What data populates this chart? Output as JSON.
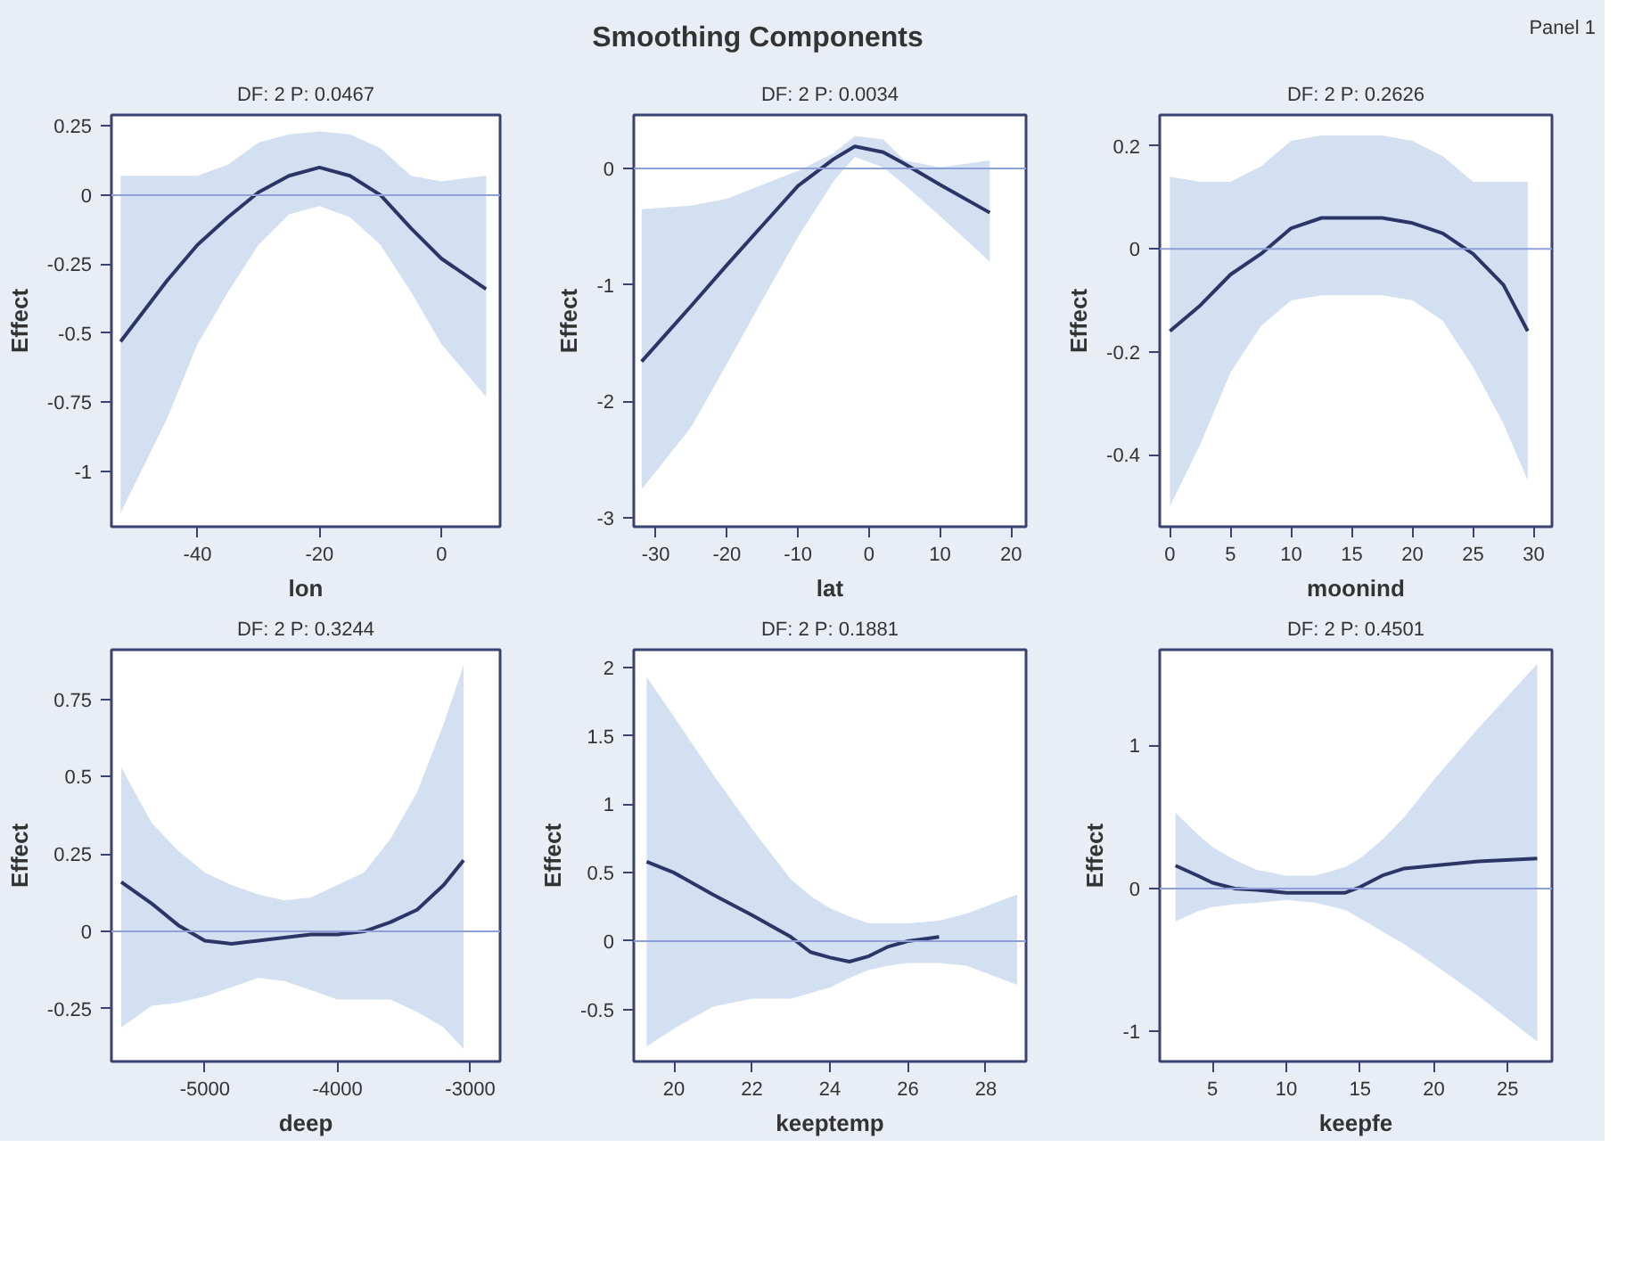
{
  "chart_data": [
    {
      "type": "line",
      "title": "DF: 2 P: 0.0467",
      "xlabel": "lon",
      "ylabel": "Effect",
      "annotations": [
        "Smoothing Components",
        "Panel 1"
      ],
      "xlim": [
        -54.1,
        9.6
      ],
      "ylim": [
        -1.2,
        0.29
      ],
      "xticks": [
        -40,
        -20,
        0
      ],
      "yticks": [
        0.25,
        0,
        -0.25,
        -0.5,
        -0.75,
        -1
      ],
      "grid": false,
      "ref_lines": [
        {
          "axis": "y",
          "value": 0,
          "color": "#8f9fd8"
        }
      ],
      "series": [
        {
          "color": "#2b3566",
          "x": [
            -52.6,
            -45,
            -40,
            -35,
            -30,
            -25,
            -20,
            -15,
            -10,
            -5,
            0,
            7.3
          ],
          "values": [
            -0.53,
            -0.31,
            -0.18,
            -0.08,
            0.01,
            0.07,
            0.1,
            0.07,
            0,
            -0.12,
            -0.23,
            -0.34
          ],
          "upper": [
            0.07,
            0.07,
            0.07,
            0.11,
            0.19,
            0.22,
            0.23,
            0.22,
            0.17,
            0.07,
            0.05,
            0.07
          ],
          "lower": [
            -1.15,
            -0.81,
            -0.54,
            -0.35,
            -0.18,
            -0.07,
            -0.04,
            -0.08,
            -0.18,
            -0.35,
            -0.54,
            -0.73
          ]
        }
      ]
    },
    {
      "type": "line",
      "title": "DF: 2 P: 0.0034",
      "xlabel": "lat",
      "ylabel": "Effect",
      "xlim": [
        -33.1,
        22.1
      ],
      "ylim": [
        -3.08,
        0.46
      ],
      "xticks": [
        -30,
        -20,
        -10,
        0,
        10,
        20
      ],
      "yticks": [
        0,
        -1,
        -2,
        -3
      ],
      "grid": false,
      "ref_lines": [
        {
          "axis": "y",
          "value": 0,
          "color": "#8f9fd8"
        }
      ],
      "series": [
        {
          "color": "#2b3566",
          "x": [
            -32,
            -25,
            -20,
            -15,
            -10,
            -5,
            -2,
            2,
            5,
            10,
            17
          ],
          "values": [
            -1.66,
            -1.18,
            -0.83,
            -0.49,
            -0.15,
            0.08,
            0.19,
            0.14,
            0.04,
            -0.14,
            -0.38
          ],
          "upper": [
            -0.35,
            -0.32,
            -0.26,
            -0.14,
            -0.02,
            0.13,
            0.28,
            0.25,
            0.07,
            0.01,
            0.07
          ],
          "lower": [
            -2.76,
            -2.22,
            -1.68,
            -1.13,
            -0.59,
            -0.11,
            0.1,
            0.01,
            -0.14,
            -0.41,
            -0.8
          ]
        }
      ]
    },
    {
      "type": "line",
      "title": "DF: 2 P: 0.2626",
      "xlabel": "moonind",
      "ylabel": "Effect",
      "xlim": [
        -0.84,
        31.5
      ],
      "ylim": [
        -0.54,
        0.26
      ],
      "xticks": [
        0,
        5,
        10,
        15,
        20,
        25,
        30
      ],
      "yticks": [
        0.2,
        0,
        -0.2,
        -0.4
      ],
      "grid": false,
      "ref_lines": [
        {
          "axis": "y",
          "value": 0,
          "color": "#8f9fd8"
        }
      ],
      "series": [
        {
          "color": "#2b3566",
          "x": [
            0,
            2.5,
            5,
            7.5,
            10,
            12.5,
            15,
            17.5,
            20,
            22.5,
            25,
            27.5,
            29.5
          ],
          "values": [
            -0.16,
            -0.11,
            -0.05,
            -0.01,
            0.04,
            0.06,
            0.06,
            0.06,
            0.05,
            0.03,
            -0.01,
            -0.07,
            -0.16
          ],
          "upper": [
            0.14,
            0.13,
            0.13,
            0.16,
            0.21,
            0.22,
            0.22,
            0.22,
            0.21,
            0.18,
            0.13,
            0.13,
            0.13
          ],
          "lower": [
            -0.5,
            -0.38,
            -0.24,
            -0.15,
            -0.1,
            -0.09,
            -0.09,
            -0.09,
            -0.1,
            -0.14,
            -0.23,
            -0.34,
            -0.45
          ]
        }
      ]
    },
    {
      "type": "line",
      "title": "DF: 2 P: 0.3244",
      "xlabel": "deep",
      "ylabel": "Effect",
      "xlim": [
        -5704,
        -2775
      ],
      "ylim": [
        -0.42,
        0.91
      ],
      "xticks": [
        -5000,
        -4000,
        -3000
      ],
      "yticks": [
        0.75,
        0.5,
        0.25,
        0,
        -0.25
      ],
      "grid": false,
      "ref_lines": [
        {
          "axis": "y",
          "value": 0,
          "color": "#8f9fd8"
        }
      ],
      "series": [
        {
          "color": "#2b3566",
          "x": [
            -5630,
            -5400,
            -5200,
            -5000,
            -4800,
            -4600,
            -4400,
            -4200,
            -4000,
            -3800,
            -3600,
            -3400,
            -3200,
            -3050
          ],
          "values": [
            0.16,
            0.09,
            0.02,
            -0.03,
            -0.04,
            -0.03,
            -0.02,
            -0.01,
            -0.01,
            0,
            0.03,
            0.07,
            0.15,
            0.23
          ],
          "upper": [
            0.53,
            0.35,
            0.26,
            0.19,
            0.15,
            0.12,
            0.1,
            0.11,
            0.15,
            0.19,
            0.3,
            0.45,
            0.67,
            0.86
          ],
          "lower": [
            -0.31,
            -0.24,
            -0.23,
            -0.21,
            -0.18,
            -0.15,
            -0.16,
            -0.19,
            -0.22,
            -0.22,
            -0.22,
            -0.26,
            -0.31,
            -0.38
          ]
        }
      ]
    },
    {
      "type": "line",
      "title": "DF: 2 P: 0.1881",
      "xlabel": "keeptemp",
      "ylabel": "Effect",
      "xlim": [
        18.97,
        29.03
      ],
      "ylim": [
        -0.88,
        2.13
      ],
      "xticks": [
        20,
        22,
        24,
        26,
        28
      ],
      "yticks": [
        2,
        1.5,
        1,
        0.5,
        0,
        -0.5
      ],
      "grid": false,
      "ref_lines": [
        {
          "axis": "y",
          "value": 0,
          "color": "#8f9fd8"
        }
      ],
      "series": [
        {
          "color": "#2b3566",
          "x": [
            19.3,
            20,
            21,
            22,
            23,
            23.5,
            24,
            24.5,
            25,
            25.5,
            26,
            26.8,
            27.5,
            28.8
          ],
          "values": [
            0.58,
            0.5,
            0.34,
            0.19,
            0.03,
            -0.08,
            -0.12,
            -0.15,
            -0.11,
            -0.04,
            0,
            0.03,
            null,
            null
          ],
          "upper": [
            1.93,
            1.64,
            1.22,
            0.82,
            0.45,
            0.33,
            0.24,
            0.18,
            0.13,
            0.13,
            0.13,
            0.15,
            0.2,
            0.34
          ],
          "lower": [
            -0.77,
            -0.64,
            -0.48,
            -0.42,
            -0.42,
            -0.38,
            -0.34,
            -0.27,
            -0.21,
            -0.18,
            -0.16,
            -0.16,
            -0.18,
            -0.32
          ]
        }
      ]
    },
    {
      "type": "line",
      "title": "DF: 2 P: 0.4501",
      "xlabel": "keepfe",
      "ylabel": "Effect",
      "xlim": [
        1.43,
        28.0
      ],
      "ylim": [
        -1.21,
        1.67
      ],
      "xticks": [
        5,
        10,
        15,
        20,
        25
      ],
      "yticks": [
        1,
        0,
        -1
      ],
      "grid": false,
      "ref_lines": [
        {
          "axis": "y",
          "value": 0,
          "color": "#8f9fd8"
        }
      ],
      "series": [
        {
          "color": "#2b3566",
          "x": [
            2.5,
            4,
            5,
            6.5,
            8,
            10,
            12,
            14,
            15,
            16.5,
            18,
            20,
            23,
            27
          ],
          "values": [
            0.16,
            0.09,
            0.04,
            0,
            -0.01,
            -0.03,
            -0.03,
            -0.03,
            0.01,
            0.09,
            0.14,
            0.16,
            0.19,
            0.21
          ],
          "upper": [
            0.53,
            0.38,
            0.29,
            0.2,
            0.13,
            0.09,
            0.09,
            0.15,
            0.21,
            0.34,
            0.5,
            0.76,
            1.12,
            1.57
          ],
          "lower": [
            -0.23,
            -0.16,
            -0.13,
            -0.11,
            -0.1,
            -0.08,
            -0.1,
            -0.15,
            -0.21,
            -0.3,
            -0.39,
            -0.53,
            -0.75,
            -1.07
          ]
        }
      ]
    }
  ]
}
